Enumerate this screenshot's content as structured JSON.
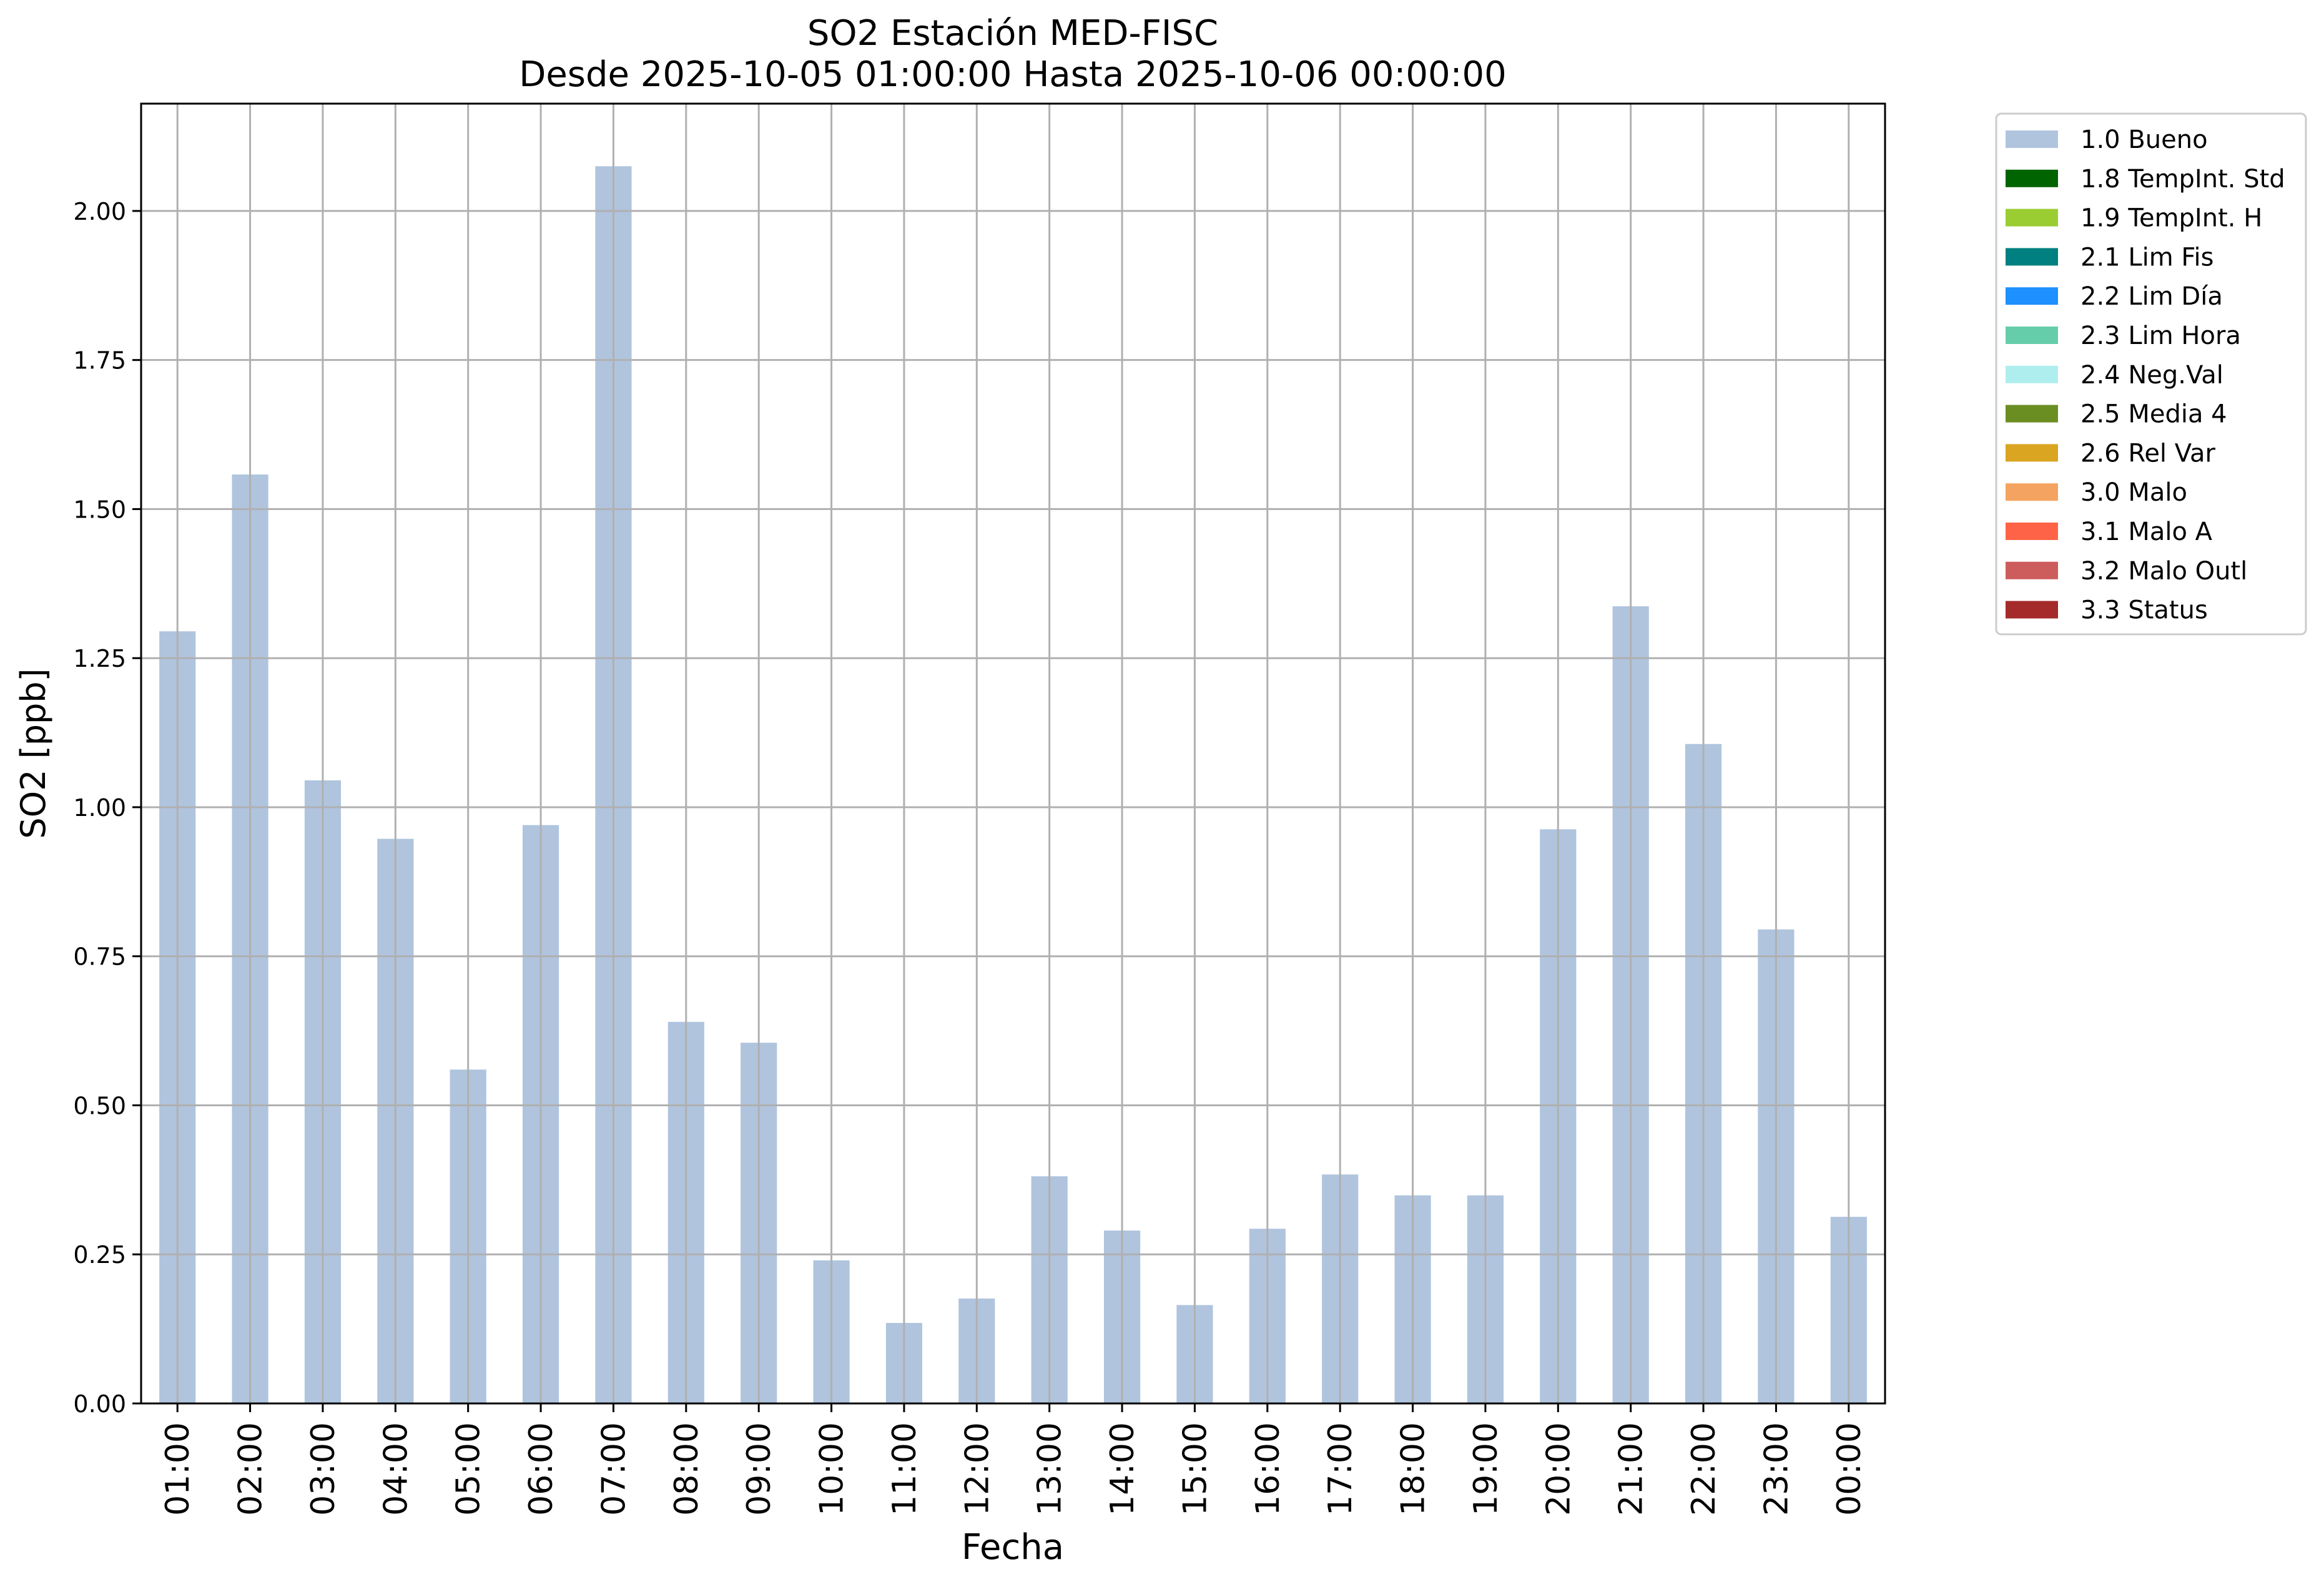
{
  "chart_data": {
    "type": "bar",
    "title": "SO2 Estación MED-FISC",
    "subtitle": "Desde 2025-10-05 01:00:00 Hasta 2025-10-06 00:00:00",
    "xlabel": "Fecha",
    "ylabel": "SO2 [ppb]",
    "ylim": [
      0,
      2.18
    ],
    "yticks": [
      "0.00",
      "0.25",
      "0.50",
      "0.75",
      "1.00",
      "1.25",
      "1.50",
      "1.75",
      "2.00"
    ],
    "grid": true,
    "legend_position": "outside-top-right",
    "categories": [
      "01:00",
      "02:00",
      "03:00",
      "04:00",
      "05:00",
      "06:00",
      "07:00",
      "08:00",
      "09:00",
      "10:00",
      "11:00",
      "12:00",
      "13:00",
      "14:00",
      "15:00",
      "16:00",
      "17:00",
      "18:00",
      "19:00",
      "20:00",
      "21:00",
      "22:00",
      "23:00",
      "00:00"
    ],
    "series": [
      {
        "name": "1.0 Bueno",
        "color": "#b0c4de",
        "values": [
          1.295,
          1.558,
          1.045,
          0.947,
          0.56,
          0.97,
          2.075,
          0.64,
          0.605,
          0.24,
          0.135,
          0.176,
          0.381,
          0.29,
          0.165,
          0.293,
          0.384,
          0.349,
          0.349,
          0.963,
          1.337,
          1.106,
          0.795,
          0.313
        ]
      }
    ],
    "legend": [
      {
        "label": "1.0 Bueno",
        "color": "#b0c4de"
      },
      {
        "label": "1.8 TempInt. Std",
        "color": "#006400"
      },
      {
        "label": "1.9 TempInt. H",
        "color": "#9acd32"
      },
      {
        "label": "2.1 Lim Fis",
        "color": "#008080"
      },
      {
        "label": "2.2 Lim Día",
        "color": "#1e90ff"
      },
      {
        "label": "2.3 Lim Hora",
        "color": "#66cdaa"
      },
      {
        "label": "2.4 Neg.Val",
        "color": "#afeeee"
      },
      {
        "label": "2.5 Media 4",
        "color": "#6b8e23"
      },
      {
        "label": "2.6 Rel Var",
        "color": "#daa520"
      },
      {
        "label": "3.0 Malo",
        "color": "#f4a460"
      },
      {
        "label": "3.1 Malo A",
        "color": "#ff6347"
      },
      {
        "label": "3.2 Malo Outl",
        "color": "#cd5c5c"
      },
      {
        "label": "3.3 Status",
        "color": "#a52a2a"
      }
    ]
  }
}
